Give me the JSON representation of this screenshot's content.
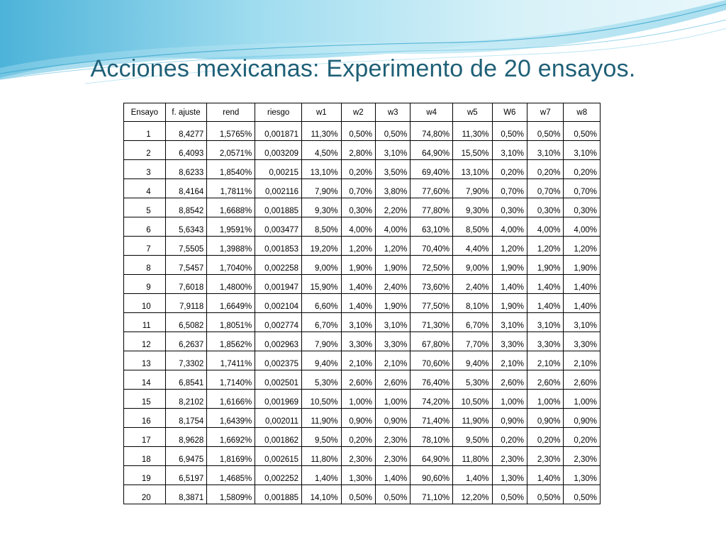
{
  "slide": {
    "title": "Acciones mexicanas: Experimento de 20 ensayos."
  },
  "table": {
    "headers": [
      "Ensayo",
      "f. ajuste",
      "rend",
      "riesgo",
      "w1",
      "w2",
      "w3",
      "w4",
      "w5",
      "W6",
      "w7",
      "w8"
    ],
    "rows": [
      [
        "1",
        "8,4277",
        "1,5765%",
        "0,001871",
        "11,30%",
        "0,50%",
        "0,50%",
        "74,80%",
        "11,30%",
        "0,50%",
        "0,50%",
        "0,50%"
      ],
      [
        "2",
        "6,4093",
        "2,0571%",
        "0,003209",
        "4,50%",
        "2,80%",
        "3,10%",
        "64,90%",
        "15,50%",
        "3,10%",
        "3,10%",
        "3,10%"
      ],
      [
        "3",
        "8,6233",
        "1,8540%",
        "0,00215",
        "13,10%",
        "0,20%",
        "3,50%",
        "69,40%",
        "13,10%",
        "0,20%",
        "0,20%",
        "0,20%"
      ],
      [
        "4",
        "8,4164",
        "1,7811%",
        "0,002116",
        "7,90%",
        "0,70%",
        "3,80%",
        "77,60%",
        "7,90%",
        "0,70%",
        "0,70%",
        "0,70%"
      ],
      [
        "5",
        "8,8542",
        "1,6688%",
        "0,001885",
        "9,30%",
        "0,30%",
        "2,20%",
        "77,80%",
        "9,30%",
        "0,30%",
        "0,30%",
        "0,30%"
      ],
      [
        "6",
        "5,6343",
        "1,9591%",
        "0,003477",
        "8,50%",
        "4,00%",
        "4,00%",
        "63,10%",
        "8,50%",
        "4,00%",
        "4,00%",
        "4,00%"
      ],
      [
        "7",
        "7,5505",
        "1,3988%",
        "0,001853",
        "19,20%",
        "1,20%",
        "1,20%",
        "70,40%",
        "4,40%",
        "1,20%",
        "1,20%",
        "1,20%"
      ],
      [
        "8",
        "7,5457",
        "1,7040%",
        "0,002258",
        "9,00%",
        "1,90%",
        "1,90%",
        "72,50%",
        "9,00%",
        "1,90%",
        "1,90%",
        "1,90%"
      ],
      [
        "9",
        "7,6018",
        "1,4800%",
        "0,001947",
        "15,90%",
        "1,40%",
        "2,40%",
        "73,60%",
        "2,40%",
        "1,40%",
        "1,40%",
        "1,40%"
      ],
      [
        "10",
        "7,9118",
        "1,6649%",
        "0,002104",
        "6,60%",
        "1,40%",
        "1,90%",
        "77,50%",
        "8,10%",
        "1,90%",
        "1,40%",
        "1,40%"
      ],
      [
        "11",
        "6,5082",
        "1,8051%",
        "0,002774",
        "6,70%",
        "3,10%",
        "3,10%",
        "71,30%",
        "6,70%",
        "3,10%",
        "3,10%",
        "3,10%"
      ],
      [
        "12",
        "6,2637",
        "1,8562%",
        "0,002963",
        "7,90%",
        "3,30%",
        "3,30%",
        "67,80%",
        "7,70%",
        "3,30%",
        "3,30%",
        "3,30%"
      ],
      [
        "13",
        "7,3302",
        "1,7411%",
        "0,002375",
        "9,40%",
        "2,10%",
        "2,10%",
        "70,60%",
        "9,40%",
        "2,10%",
        "2,10%",
        "2,10%"
      ],
      [
        "14",
        "6,8541",
        "1,7140%",
        "0,002501",
        "5,30%",
        "2,60%",
        "2,60%",
        "76,40%",
        "5,30%",
        "2,60%",
        "2,60%",
        "2,60%"
      ],
      [
        "15",
        "8,2102",
        "1,6166%",
        "0,001969",
        "10,50%",
        "1,00%",
        "1,00%",
        "74,20%",
        "10,50%",
        "1,00%",
        "1,00%",
        "1,00%"
      ],
      [
        "16",
        "8,1754",
        "1,6439%",
        "0,002011",
        "11,90%",
        "0,90%",
        "0,90%",
        "71,40%",
        "11,90%",
        "0,90%",
        "0,90%",
        "0,90%"
      ],
      [
        "17",
        "8,9628",
        "1,6692%",
        "0,001862",
        "9,50%",
        "0,20%",
        "2,30%",
        "78,10%",
        "9,50%",
        "0,20%",
        "0,20%",
        "0,20%"
      ],
      [
        "18",
        "6,9475",
        "1,8169%",
        "0,002615",
        "11,80%",
        "2,30%",
        "2,30%",
        "64,90%",
        "11,80%",
        "2,30%",
        "2,30%",
        "2,30%"
      ],
      [
        "19",
        "6,5197",
        "1,4685%",
        "0,002252",
        "1,40%",
        "1,30%",
        "1,40%",
        "90,60%",
        "1,40%",
        "1,30%",
        "1,40%",
        "1,30%"
      ],
      [
        "20",
        "8,3871",
        "1,5809%",
        "0,001885",
        "14,10%",
        "0,50%",
        "0,50%",
        "71,10%",
        "12,20%",
        "0,50%",
        "0,50%",
        "0,50%"
      ]
    ]
  },
  "theme": {
    "title_color": "#1f6077",
    "wave_light": "#bfe8f4",
    "wave_mid": "#8fd4ea",
    "wave_dark": "#3fa9cf"
  }
}
